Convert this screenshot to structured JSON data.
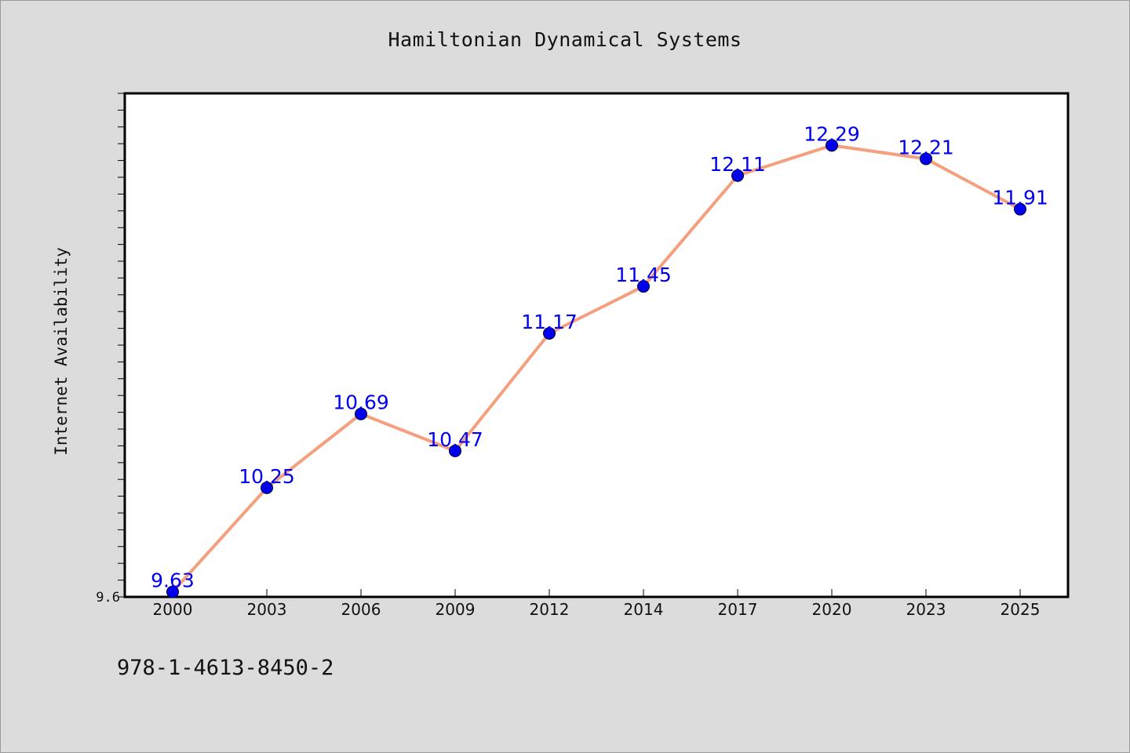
{
  "chart_data": {
    "type": "line",
    "title": "Hamiltonian Dynamical Systems",
    "ylabel": "Internet Availability",
    "xlabel": "",
    "categories": [
      "2000",
      "2003",
      "2006",
      "2009",
      "2012",
      "2014",
      "2017",
      "2020",
      "2023",
      "2025"
    ],
    "series": [
      {
        "values": [
          9.63,
          10.25,
          10.69,
          10.47,
          11.17,
          11.45,
          12.11,
          12.29,
          12.21,
          11.91
        ],
        "data_labels": [
          "9.63",
          "10.25",
          "10.69",
          "10.47",
          "11.17",
          "11.45",
          "12.11",
          "12.29",
          "12.21",
          "11.91"
        ],
        "line_color": "#f4a07e",
        "marker_color": "#0000ee"
      }
    ],
    "ylim": [
      9.6,
      12.6
    ],
    "ytick_labels": [
      "9.6"
    ],
    "grid": false,
    "legend": "none"
  },
  "footer": {
    "isbn": "978-1-4613-8450-2"
  }
}
